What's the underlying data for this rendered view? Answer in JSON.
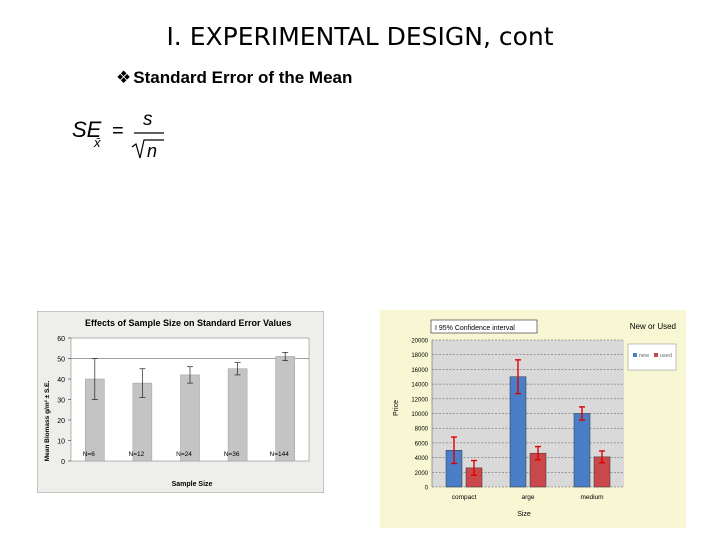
{
  "slide": {
    "title": "I.  EXPERIMENTAL DESIGN, cont",
    "bullet": "Standard Error of the Mean",
    "bullet_icon": "diamond-bullet-icon",
    "formula": {
      "lhs": "SE",
      "subscript": "x̄",
      "equals": "=",
      "numerator": "s",
      "denominator": "n"
    }
  },
  "chart_data": [
    {
      "type": "bar",
      "title": "Effects of Sample Size on Standard Error Values",
      "xlabel": "Sample Size",
      "ylabel": "Mean Biomass g/m² ± S.E.",
      "ylim": [
        0,
        60
      ],
      "yticks": [
        "0",
        "10",
        "20",
        "30",
        "40",
        "50",
        "60"
      ],
      "categories": [
        "N=6",
        "N=12",
        "N=24",
        "N=36",
        "N=144"
      ],
      "values": [
        40,
        38,
        42,
        45,
        51
      ],
      "errors": [
        10,
        7,
        4,
        3,
        2
      ],
      "reference_line": 50,
      "colors": {
        "bar": "#c4c4c4",
        "background": "#eeeeea"
      }
    },
    {
      "type": "bar",
      "title": "New or Used",
      "annotation": "I 95% Confidence interval",
      "xlabel": "Size",
      "ylabel": "Price",
      "ylim": [
        0,
        20000
      ],
      "yticks": [
        "0",
        "2000",
        "4000",
        "6000",
        "8000",
        "10000",
        "12000",
        "14000",
        "16000",
        "18000",
        "20000"
      ],
      "categories": [
        "compact",
        "arge",
        "medium"
      ],
      "series": [
        {
          "name": "new",
          "values": [
            5000,
            15000,
            10000
          ],
          "errors": [
            1800,
            2300,
            900
          ],
          "color": "#4a7fc8"
        },
        {
          "name": "used",
          "values": [
            2600,
            4600,
            4100
          ],
          "errors": [
            1000,
            900,
            800
          ],
          "color": "#c9484b"
        }
      ],
      "legend_placement": "right",
      "colors": {
        "plot_background": "#d9d9d9",
        "error_bar": "#dd0000",
        "outer": "#f7f7d4"
      }
    }
  ]
}
